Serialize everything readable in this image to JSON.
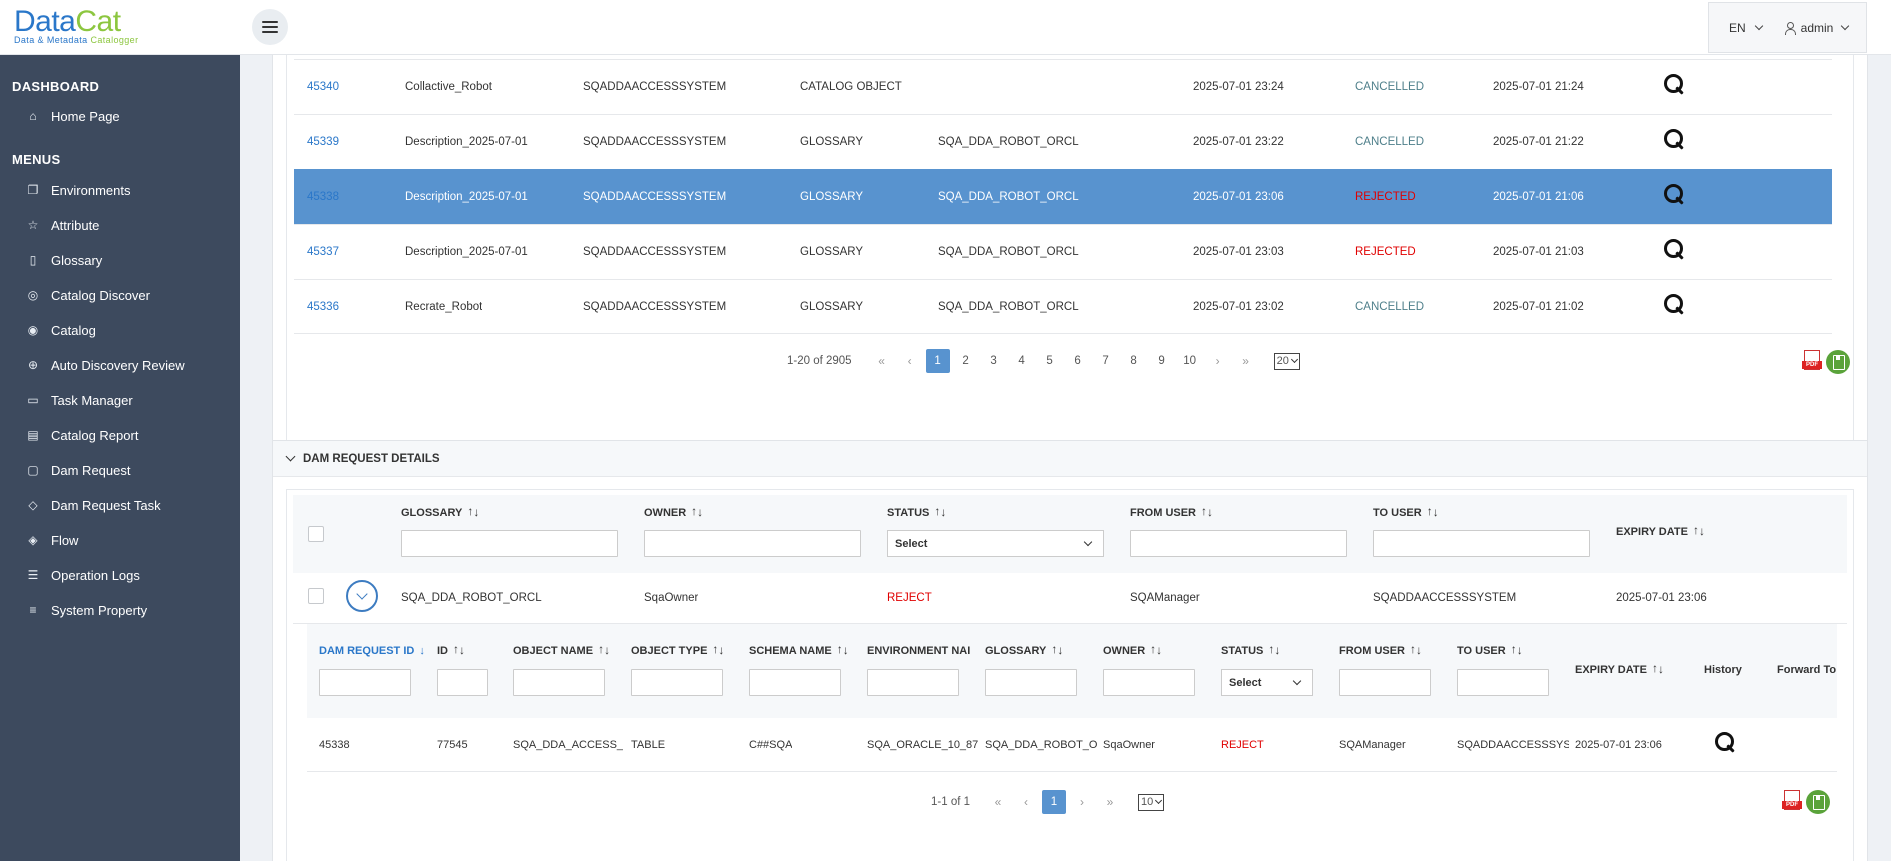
{
  "app": {
    "logo_main_a": "Data",
    "logo_main_b": "Cat",
    "logo_sub_a": "Data & Metadata ",
    "logo_sub_b": "Catalogger",
    "language": "EN",
    "user": "admin"
  },
  "sidebar": {
    "section_dashboard": "DASHBOARD",
    "section_menus": "MENUS",
    "dashboard_items": [
      {
        "label": "Home Page",
        "icon": "home-icon"
      }
    ],
    "menu_items": [
      {
        "label": "Environments",
        "icon": "copy-icon"
      },
      {
        "label": "Attribute",
        "icon": "star-icon"
      },
      {
        "label": "Glossary",
        "icon": "book-icon"
      },
      {
        "label": "Catalog Discover",
        "icon": "compass-icon"
      },
      {
        "label": "Catalog",
        "icon": "eye-icon"
      },
      {
        "label": "Auto Discovery Review",
        "icon": "globe-icon"
      },
      {
        "label": "Task Manager",
        "icon": "briefcase-icon"
      },
      {
        "label": "Catalog Report",
        "icon": "report-icon"
      },
      {
        "label": "Dam Request",
        "icon": "file-icon"
      },
      {
        "label": "Dam Request Task",
        "icon": "tag-icon"
      },
      {
        "label": "Flow",
        "icon": "flow-icon"
      },
      {
        "label": "Operation Logs",
        "icon": "list-icon"
      },
      {
        "label": "System Property",
        "icon": "align-icon"
      }
    ]
  },
  "requests": {
    "rows": [
      {
        "id": "45340",
        "name": "Collactive_Robot",
        "user": "SQADDAACCESSSYSTEM",
        "type": "CATALOG OBJECT",
        "glossary": "",
        "expiry": "2025-07-01 23:24",
        "status": "CANCELLED",
        "created": "2025-07-01 21:24",
        "selected": false
      },
      {
        "id": "45339",
        "name": "Description_2025-07-01",
        "user": "SQADDAACCESSSYSTEM",
        "type": "GLOSSARY",
        "glossary": "SQA_DDA_ROBOT_ORCL",
        "expiry": "2025-07-01 23:22",
        "status": "CANCELLED",
        "created": "2025-07-01 21:22",
        "selected": false
      },
      {
        "id": "45338",
        "name": "Description_2025-07-01",
        "user": "SQADDAACCESSSYSTEM",
        "type": "GLOSSARY",
        "glossary": "SQA_DDA_ROBOT_ORCL",
        "expiry": "2025-07-01 23:06",
        "status": "REJECTED",
        "created": "2025-07-01 21:06",
        "selected": true
      },
      {
        "id": "45337",
        "name": "Description_2025-07-01",
        "user": "SQADDAACCESSSYSTEM",
        "type": "GLOSSARY",
        "glossary": "SQA_DDA_ROBOT_ORCL",
        "expiry": "2025-07-01 23:03",
        "status": "REJECTED",
        "created": "2025-07-01 21:03",
        "selected": false
      },
      {
        "id": "45336",
        "name": "Recrate_Robot",
        "user": "SQADDAACCESSSYSTEM",
        "type": "GLOSSARY",
        "glossary": "SQA_DDA_ROBOT_ORCL",
        "expiry": "2025-07-01 23:02",
        "status": "CANCELLED",
        "created": "2025-07-01 21:02",
        "selected": false
      }
    ],
    "pager": {
      "summary": "1-20 of 2905",
      "first": "«",
      "prev": "‹",
      "next": "›",
      "last": "»",
      "pages": [
        "1",
        "2",
        "3",
        "4",
        "5",
        "6",
        "7",
        "8",
        "9",
        "10"
      ],
      "active_page": "1",
      "page_size": "20"
    },
    "pdf_label": "PDF"
  },
  "details": {
    "title": "DAM REQUEST DETAILS",
    "columns": {
      "glossary": "GLOSSARY",
      "owner": "OWNER",
      "status": "STATUS",
      "from_user": "FROM USER",
      "to_user": "TO USER",
      "expiry_date": "EXPIRY DATE"
    },
    "status_filter": "Select",
    "row": {
      "glossary": "SQA_DDA_ROBOT_ORCL",
      "owner": "SqaOwner",
      "status": "REJECT",
      "from_user": "SQAManager",
      "to_user": "SQADDAACCESSSYSTEM",
      "expiry_date": "2025-07-01 23:06"
    },
    "sub": {
      "columns": {
        "dam_request_id": "DAM REQUEST ID",
        "id": "ID",
        "object_name": "OBJECT NAME",
        "object_type": "OBJECT TYPE",
        "schema_name": "SCHEMA NAME",
        "environment_name": "ENVIRONMENT NAI",
        "glossary": "GLOSSARY",
        "owner": "OWNER",
        "status": "STATUS",
        "from_user": "FROM USER",
        "to_user": "TO USER",
        "expiry_date": "EXPIRY DATE",
        "history": "History",
        "forward_to": "Forward To"
      },
      "status_filter": "Select",
      "row": {
        "dam_request_id": "45338",
        "id": "77545",
        "object_name": "SQA_DDA_ACCESS_R",
        "object_type": "TABLE",
        "schema_name": "C##SQA",
        "environment_name": "SQA_ORACLE_10_87",
        "glossary": "SQA_DDA_ROBOT_O",
        "owner": "SqaOwner",
        "status": "REJECT",
        "from_user": "SQAManager",
        "to_user": "SQADDAACCESSSYS'",
        "expiry_date": "2025-07-01 23:06"
      },
      "pager": {
        "summary": "1-1 of 1",
        "first": "«",
        "prev": "‹",
        "next": "›",
        "last": "»",
        "active_page": "1",
        "page_size": "10"
      }
    }
  },
  "colors": {
    "sidebar": "#3d4a5e",
    "accent": "#5893cf",
    "link": "#2a77c9",
    "reject": "#e00000",
    "cancelled": "#4e7f8a"
  }
}
